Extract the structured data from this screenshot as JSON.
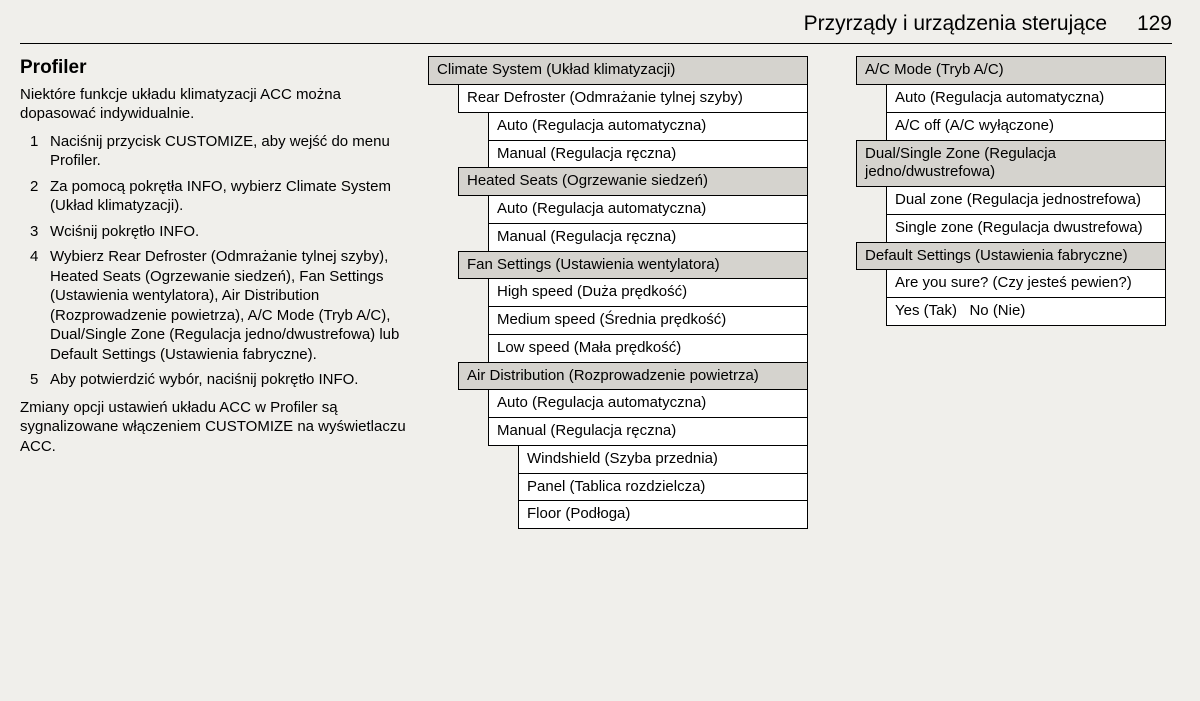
{
  "header": {
    "title": "Przyrządy i urządzenia sterujące",
    "page": "129"
  },
  "left": {
    "heading": "Profiler",
    "intro": "Niektóre funkcje układu klimatyzacji ACC można dopasować indywidualnie.",
    "steps": [
      "Naciśnij przycisk CUSTOMIZE, aby wejść do menu Profiler.",
      "Za pomocą pokrętła INFO, wybierz Climate System (Układ klimatyzacji).",
      "Wciśnij pokrętło INFO.",
      "Wybierz Rear Defroster (Odmrażanie tylnej szyby), Heated Seats (Ogrzewanie siedzeń), Fan Settings (Ustawienia wentylatora), Air Distribution (Rozprowadzenie powietrza), A/C Mode (Tryb A/C), Dual/Single Zone (Regulacja jedno/dwustrefowa) lub Default Settings (Ustawienia fabryczne).",
      "Aby potwierdzić wybór, naciśnij pokrętło INFO."
    ],
    "outro": "Zmiany opcji ustawień układu ACC w Profiler są sygnalizowane włączeniem CUSTOMIZE na wyświetlaczu ACC."
  },
  "mid": [
    {
      "lvl": 0,
      "shaded": true,
      "text": "Climate System (Układ klimatyzacji)"
    },
    {
      "lvl": 1,
      "shaded": false,
      "text": "Rear Defroster (Odmrażanie tylnej szyby)"
    },
    {
      "lvl": 2,
      "shaded": false,
      "text": "Auto (Regulacja automatyczna)"
    },
    {
      "lvl": 2,
      "shaded": false,
      "text": "Manual (Regulacja ręczna)"
    },
    {
      "lvl": 1,
      "shaded": true,
      "text": "Heated Seats (Ogrzewanie siedzeń)"
    },
    {
      "lvl": 2,
      "shaded": false,
      "text": "Auto (Regulacja automatyczna)"
    },
    {
      "lvl": 2,
      "shaded": false,
      "text": "Manual (Regulacja ręczna)"
    },
    {
      "lvl": 1,
      "shaded": true,
      "text": "Fan Settings (Ustawienia wentylatora)"
    },
    {
      "lvl": 2,
      "shaded": false,
      "text": "High speed (Duża prędkość)"
    },
    {
      "lvl": 2,
      "shaded": false,
      "text": "Medium speed (Średnia prędkość)"
    },
    {
      "lvl": 2,
      "shaded": false,
      "text": "Low speed (Mała prędkość)"
    },
    {
      "lvl": 1,
      "shaded": true,
      "text": "Air Distribution (Rozprowadzenie powietrza)"
    },
    {
      "lvl": 2,
      "shaded": false,
      "text": "Auto (Regulacja automatyczna)"
    },
    {
      "lvl": 2,
      "shaded": false,
      "text": "Manual (Regulacja ręczna)"
    },
    {
      "lvl": 3,
      "shaded": false,
      "text": "Windshield (Szyba przednia)"
    },
    {
      "lvl": 3,
      "shaded": false,
      "text": "Panel (Tablica rozdzielcza)"
    },
    {
      "lvl": 3,
      "shaded": false,
      "text": "Floor (Podłoga)"
    }
  ],
  "right": [
    {
      "lvl": 1,
      "shaded": true,
      "text": "A/C Mode (Tryb A/C)"
    },
    {
      "lvl": 2,
      "shaded": false,
      "text": "Auto (Regulacja automatyczna)"
    },
    {
      "lvl": 2,
      "shaded": false,
      "text": "A/C off (A/C wyłączone)"
    },
    {
      "lvl": 1,
      "shaded": true,
      "text": "Dual/Single Zone (Regulacja jedno/dwustrefowa)"
    },
    {
      "lvl": 2,
      "shaded": false,
      "text": "Dual zone (Regulacja jednostrefowa)"
    },
    {
      "lvl": 2,
      "shaded": false,
      "text": "Single zone (Regulacja dwustrefowa)"
    },
    {
      "lvl": 1,
      "shaded": true,
      "text": "Default Settings (Ustawienia fabryczne)"
    },
    {
      "lvl": 2,
      "shaded": false,
      "text": "Are you sure? (Czy jesteś pewien?)"
    },
    {
      "lvl": 2,
      "shaded": false,
      "text": "Yes (Tak)   No (Nie)"
    }
  ]
}
